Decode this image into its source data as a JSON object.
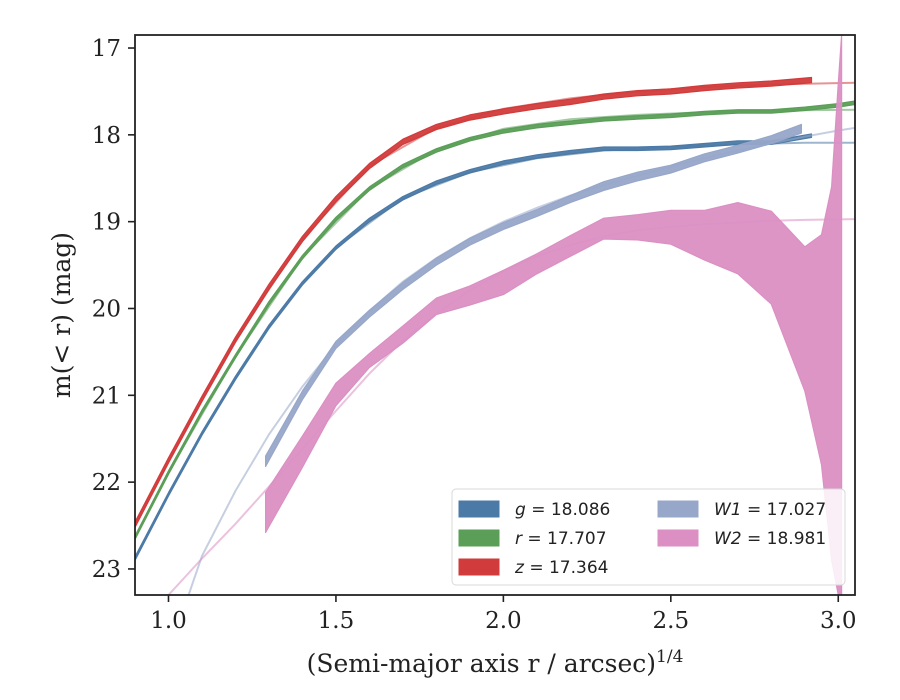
{
  "chart_data": {
    "type": "line",
    "title": "",
    "xlabel": "(Semi-major axis r / arcsec)",
    "xlabel_exponent": "1/4",
    "ylabel": "m(< r) (mag)",
    "xlim": [
      0.9,
      3.05
    ],
    "ylim": [
      23.3,
      16.85
    ],
    "y_inverted": true,
    "xticks": [
      1.0,
      1.5,
      2.0,
      2.5,
      3.0
    ],
    "xtick_labels": [
      "1.0",
      "1.5",
      "2.0",
      "2.5",
      "3.0"
    ],
    "yticks": [
      17,
      18,
      19,
      20,
      21,
      22,
      23
    ],
    "ytick_labels": [
      "17",
      "18",
      "19",
      "20",
      "21",
      "22",
      "23"
    ],
    "grid": false,
    "legend_position": "lower-right",
    "series": [
      {
        "name": "g = 18.086",
        "label_var": "g",
        "label_val": "= 18.086",
        "color": "#4c7aa6",
        "x": [
          0.9,
          1.0,
          1.1,
          1.2,
          1.3,
          1.4,
          1.5,
          1.6,
          1.7,
          1.8,
          1.9,
          2.0,
          2.1,
          2.2,
          2.3,
          2.4,
          2.5,
          2.6,
          2.7,
          2.8,
          2.92
        ],
        "y_low": [
          22.86,
          22.12,
          21.42,
          20.78,
          20.19,
          19.69,
          19.28,
          18.96,
          18.71,
          18.53,
          18.4,
          18.3,
          18.23,
          18.18,
          18.14,
          18.14,
          18.13,
          18.1,
          18.07,
          18.07,
          17.99
        ],
        "y_high": [
          22.9,
          22.16,
          21.46,
          20.82,
          20.23,
          19.73,
          19.32,
          19.0,
          18.75,
          18.57,
          18.44,
          18.34,
          18.27,
          18.22,
          18.18,
          18.18,
          18.17,
          18.14,
          18.11,
          18.11,
          18.03
        ],
        "model_x": [
          0.9,
          1.0,
          1.1,
          1.2,
          1.3,
          1.4,
          1.5,
          1.7,
          1.9,
          2.1,
          2.3,
          2.5,
          2.7,
          2.9,
          3.05
        ],
        "model_y": [
          22.88,
          22.14,
          21.44,
          20.8,
          20.21,
          19.71,
          19.3,
          18.73,
          18.43,
          18.27,
          18.18,
          18.14,
          18.11,
          18.09,
          18.09
        ]
      },
      {
        "name": "r = 17.707",
        "label_var": "r",
        "label_val": "= 17.707",
        "color": "#5a9e57",
        "x": [
          0.9,
          1.0,
          1.1,
          1.2,
          1.3,
          1.4,
          1.5,
          1.6,
          1.7,
          1.8,
          1.9,
          2.0,
          2.1,
          2.2,
          2.3,
          2.4,
          2.5,
          2.6,
          2.7,
          2.8,
          2.9,
          3.0,
          3.05
        ],
        "y_low": [
          22.62,
          21.87,
          21.17,
          20.53,
          19.92,
          19.39,
          18.95,
          18.6,
          18.34,
          18.16,
          18.03,
          17.94,
          17.88,
          17.84,
          17.8,
          17.78,
          17.76,
          17.73,
          17.71,
          17.71,
          17.68,
          17.64,
          17.61
        ],
        "y_high": [
          22.66,
          21.91,
          21.21,
          20.57,
          19.96,
          19.43,
          18.99,
          18.64,
          18.38,
          18.2,
          18.07,
          17.98,
          17.92,
          17.88,
          17.84,
          17.82,
          17.8,
          17.77,
          17.75,
          17.75,
          17.72,
          17.68,
          17.65
        ],
        "model_x": [
          0.9,
          1.0,
          1.2,
          1.4,
          1.6,
          1.8,
          2.0,
          2.2,
          2.4,
          2.6,
          2.8,
          3.05
        ],
        "model_y": [
          22.64,
          21.89,
          20.55,
          19.41,
          18.62,
          18.17,
          17.93,
          17.82,
          17.77,
          17.74,
          17.72,
          17.71
        ]
      },
      {
        "name": "z = 17.364",
        "label_var": "z",
        "label_val": "= 17.364",
        "color": "#d23b3b",
        "x": [
          0.9,
          1.0,
          1.1,
          1.2,
          1.3,
          1.4,
          1.5,
          1.6,
          1.7,
          1.8,
          1.9,
          2.0,
          2.1,
          2.2,
          2.3,
          2.4,
          2.5,
          2.6,
          2.7,
          2.8,
          2.92
        ],
        "y_low": [
          22.46,
          21.72,
          21.01,
          20.33,
          19.72,
          19.17,
          18.71,
          18.33,
          18.05,
          17.88,
          17.77,
          17.7,
          17.64,
          17.59,
          17.53,
          17.49,
          17.47,
          17.43,
          17.4,
          17.38,
          17.34
        ],
        "y_high": [
          22.52,
          21.78,
          21.07,
          20.39,
          19.78,
          19.23,
          18.77,
          18.39,
          18.11,
          17.94,
          17.83,
          17.76,
          17.7,
          17.65,
          17.59,
          17.55,
          17.53,
          17.49,
          17.46,
          17.44,
          17.4
        ],
        "model_x": [
          0.9,
          1.0,
          1.2,
          1.4,
          1.6,
          1.8,
          2.0,
          2.2,
          2.4,
          2.6,
          2.8,
          3.05
        ],
        "model_y": [
          22.49,
          21.75,
          20.36,
          19.2,
          18.36,
          17.92,
          17.7,
          17.58,
          17.5,
          17.45,
          17.42,
          17.4
        ]
      },
      {
        "name": "W1 = 17.027",
        "label_var": "W1",
        "label_val": "= 17.027",
        "color": "#97a7c9",
        "x": [
          1.29,
          1.4,
          1.5,
          1.6,
          1.7,
          1.8,
          1.9,
          2.0,
          2.1,
          2.2,
          2.3,
          2.4,
          2.5,
          2.6,
          2.7,
          2.8,
          2.89
        ],
        "y_low": [
          21.7,
          20.95,
          20.38,
          20.02,
          19.7,
          19.42,
          19.19,
          19.01,
          18.86,
          18.7,
          18.54,
          18.43,
          18.35,
          18.22,
          18.12,
          18.01,
          17.88
        ],
        "y_high": [
          21.82,
          21.05,
          20.46,
          20.1,
          19.78,
          19.5,
          19.27,
          19.09,
          18.94,
          18.78,
          18.64,
          18.53,
          18.44,
          18.31,
          18.21,
          18.1,
          17.98
        ],
        "model_x": [
          1.06,
          1.1,
          1.2,
          1.3,
          1.4,
          1.5,
          1.6,
          1.7,
          1.8,
          1.9,
          2.0,
          2.1,
          2.2,
          2.3,
          2.4,
          2.5,
          2.6,
          2.7,
          2.8,
          2.9,
          3.0,
          3.05
        ],
        "model_y": [
          23.3,
          22.85,
          22.1,
          21.45,
          20.9,
          20.42,
          20.03,
          19.69,
          19.42,
          19.19,
          19.0,
          18.84,
          18.7,
          18.58,
          18.47,
          18.37,
          18.27,
          18.18,
          18.1,
          18.02,
          17.95,
          17.92
        ]
      },
      {
        "name": "W2 = 18.981",
        "label_var": "W2",
        "label_val": "= 18.981",
        "color": "#db8fc3",
        "x": [
          1.29,
          1.4,
          1.5,
          1.6,
          1.7,
          1.8,
          1.9,
          2.0,
          2.1,
          2.2,
          2.3,
          2.4,
          2.5,
          2.6,
          2.7,
          2.8,
          2.9,
          2.95,
          2.98,
          3.0,
          3.01
        ],
        "y_low": [
          22.12,
          21.47,
          20.86,
          20.52,
          20.2,
          19.88,
          19.74,
          19.56,
          19.37,
          19.16,
          18.96,
          18.92,
          18.87,
          18.87,
          18.78,
          18.88,
          19.29,
          19.15,
          18.6,
          17.4,
          16.85
        ],
        "y_high": [
          22.58,
          21.83,
          21.12,
          20.68,
          20.4,
          20.07,
          19.96,
          19.84,
          19.6,
          19.4,
          19.2,
          19.21,
          19.26,
          19.44,
          19.6,
          19.95,
          20.95,
          21.8,
          22.9,
          23.3,
          23.3
        ],
        "model_x": [
          1.0,
          1.1,
          1.2,
          1.3,
          1.4,
          1.5,
          1.6,
          1.7,
          1.8,
          1.9,
          2.0,
          2.1,
          2.2,
          2.3,
          2.4,
          2.5,
          2.6,
          2.7,
          2.8,
          2.9,
          3.05
        ],
        "model_y": [
          23.3,
          22.88,
          22.48,
          22.05,
          21.62,
          21.18,
          20.75,
          20.37,
          20.06,
          19.79,
          19.57,
          19.4,
          19.27,
          19.17,
          19.1,
          19.06,
          19.03,
          19.01,
          18.99,
          18.98,
          18.97
        ]
      }
    ]
  }
}
